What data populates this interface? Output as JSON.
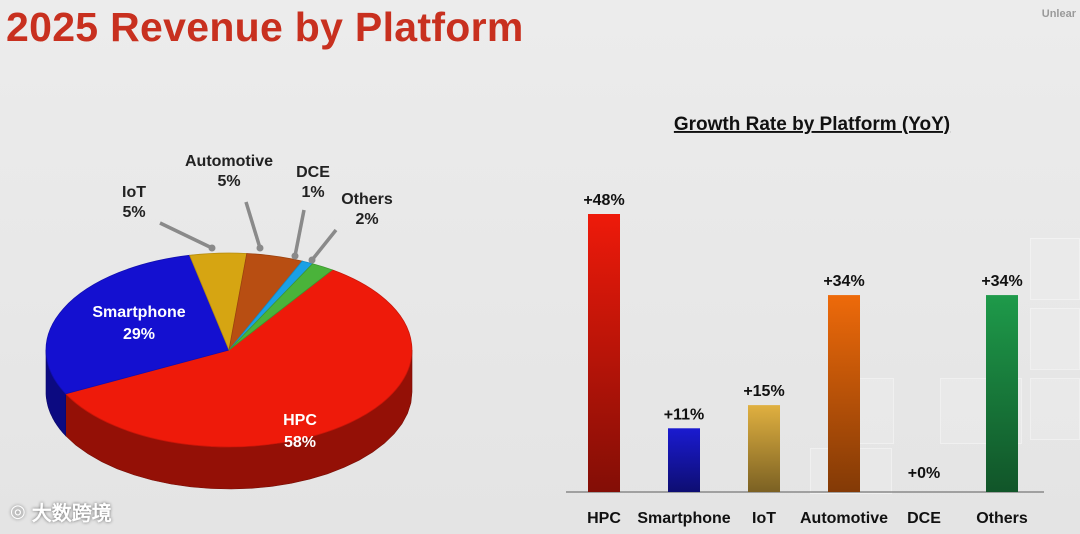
{
  "page": {
    "title": "2025 Revenue by Platform",
    "corner_text": "Unlear",
    "watermark": "大数跨境"
  },
  "chart_data": [
    {
      "type": "pie",
      "title": "",
      "slices": [
        {
          "label": "HPC",
          "value_label": "58%",
          "value": 58,
          "color": "#ee1a0a"
        },
        {
          "label": "Smartphone",
          "value_label": "29%",
          "value": 29,
          "color": "#1410d0"
        },
        {
          "label": "IoT",
          "value_label": "5%",
          "value": 5,
          "color": "#d6a512"
        },
        {
          "label": "Automotive",
          "value_label": "5%",
          "value": 5,
          "color": "#b84e12"
        },
        {
          "label": "DCE",
          "value_label": "1%",
          "value": 1,
          "color": "#1aa0e6"
        },
        {
          "label": "Others",
          "value_label": "2%",
          "value": 2,
          "color": "#4ab33a"
        }
      ]
    },
    {
      "type": "bar",
      "title": "Growth Rate by Platform (YoY)",
      "categories": [
        "HPC",
        "Smartphone",
        "IoT",
        "Automotive",
        "DCE",
        "Others"
      ],
      "values": [
        48,
        11,
        15,
        34,
        0,
        34
      ],
      "value_labels": [
        "+48%",
        "+11%",
        "+15%",
        "+34%",
        "+0%",
        "+34%"
      ],
      "colors": [
        "#ee1a0a",
        "#1a1ad0",
        "#e0b040",
        "#ee6a0a",
        "#999999",
        "#1e9a4a"
      ],
      "ylim": [
        0,
        50
      ],
      "xlabel": "",
      "ylabel": ""
    }
  ]
}
